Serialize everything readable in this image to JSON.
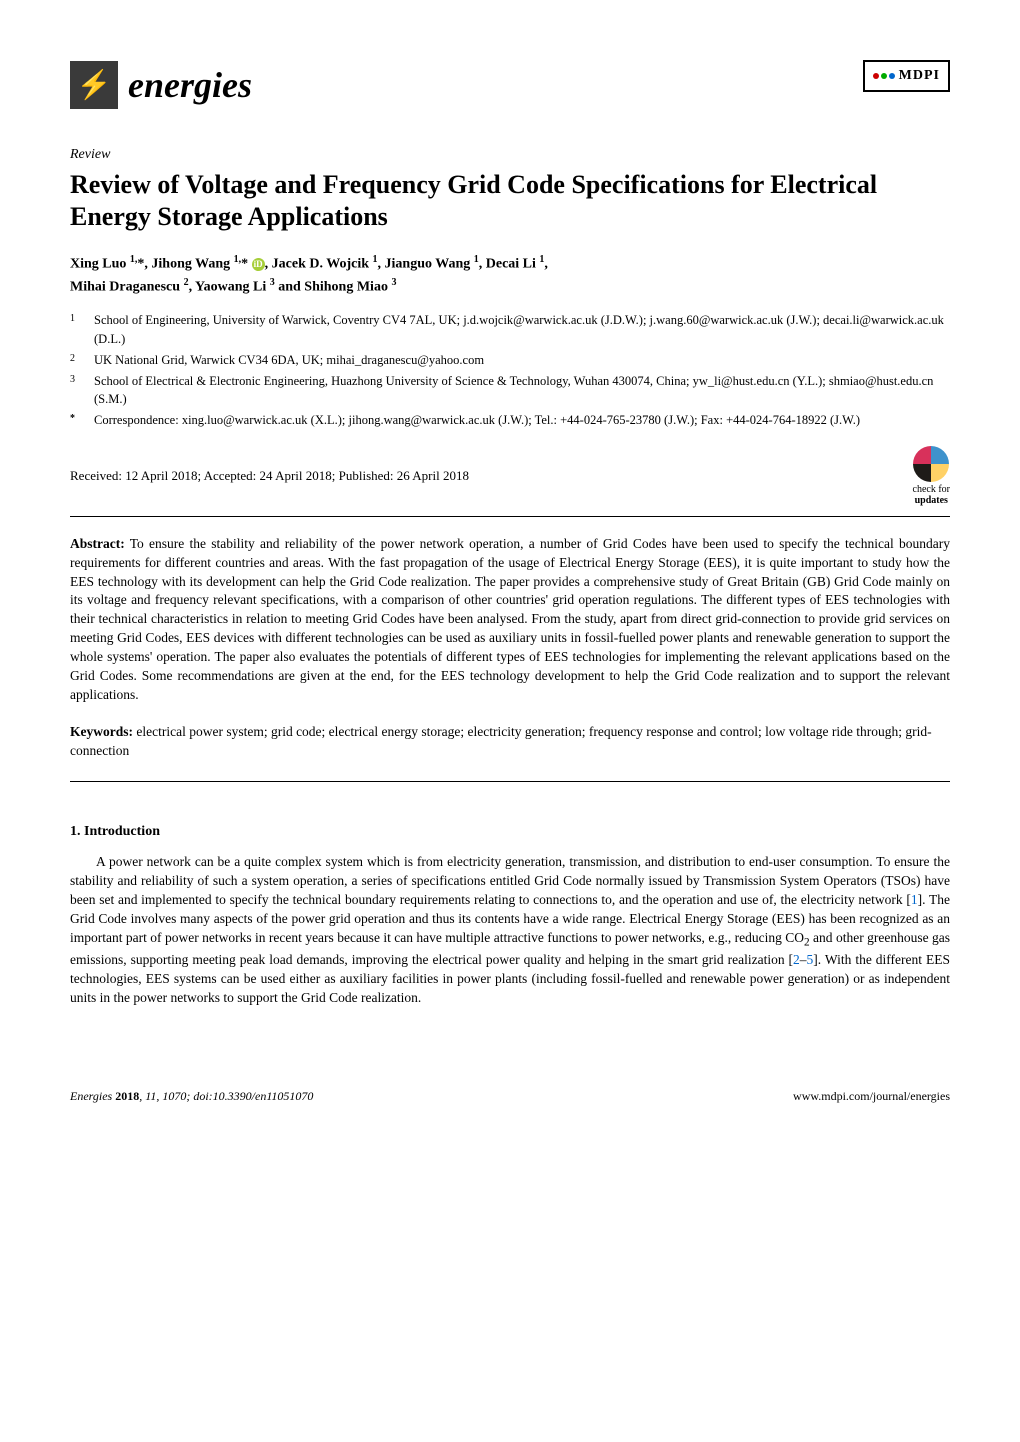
{
  "header": {
    "journal_name": "energies",
    "publisher_logo_text": "MDPI"
  },
  "article": {
    "type_label": "Review",
    "title": "Review of Voltage and Frequency Grid Code Specifications for Electrical Energy Storage Applications",
    "authors_line1": "Xing Luo ",
    "authors_sup1": "1,",
    "authors_part2": "*, Jihong Wang ",
    "authors_sup2": "1,",
    "authors_part3": "* ",
    "authors_part4": ", Jacek D. Wojcik ",
    "authors_sup4": "1",
    "authors_part5": ", Jianguo Wang ",
    "authors_sup5": "1",
    "authors_part6": ", Decai Li ",
    "authors_sup6": "1",
    "authors_part7": ",",
    "authors_line2_start": "Mihai Draganescu ",
    "authors_sup7": "2",
    "authors_part8": ", Yaowang Li ",
    "authors_sup8": "3",
    "authors_part9": " and Shihong Miao ",
    "authors_sup9": "3"
  },
  "affiliations": {
    "a1_num": "1",
    "a1_text": "School of Engineering, University of Warwick, Coventry CV4 7AL, UK; j.d.wojcik@warwick.ac.uk (J.D.W.); j.wang.60@warwick.ac.uk (J.W.); decai.li@warwick.ac.uk (D.L.)",
    "a2_num": "2",
    "a2_text": "UK National Grid, Warwick CV34 6DA, UK; mihai_draganescu@yahoo.com",
    "a3_num": "3",
    "a3_text": "School of Electrical & Electronic Engineering, Huazhong University of Science & Technology, Wuhan 430074, China; yw_li@hust.edu.cn (Y.L.); shmiao@hust.edu.cn (S.M.)",
    "corr_num": "*",
    "corr_text": "Correspondence: xing.luo@warwick.ac.uk (X.L.); jihong.wang@warwick.ac.uk (J.W.); Tel.: +44-024-765-23780 (J.W.); Fax: +44-024-764-18922 (J.W.)"
  },
  "dates": {
    "text": "Received: 12 April 2018; Accepted: 24 April 2018; Published: 26 April 2018"
  },
  "check_updates": {
    "line1": "check for",
    "line2": "updates",
    "colors": {
      "tl": "#d8315b",
      "tr": "#3e92cc",
      "bl": "#1e1b18",
      "br": "#ffd166"
    }
  },
  "abstract": {
    "label": "Abstract:",
    "text": " To ensure the stability and reliability of the power network operation, a number of Grid Codes have been used to specify the technical boundary requirements for different countries and areas. With the fast propagation of the usage of Electrical Energy Storage (EES), it is quite important to study how the EES technology with its development can help the Grid Code realization. The paper provides a comprehensive study of Great Britain (GB) Grid Code mainly on its voltage and frequency relevant specifications, with a comparison of other countries' grid operation regulations. The different types of EES technologies with their technical characteristics in relation to meeting Grid Codes have been analysed. From the study, apart from direct grid-connection to provide grid services on meeting Grid Codes, EES devices with different technologies can be used as auxiliary units in fossil-fuelled power plants and renewable generation to support the whole systems' operation. The paper also evaluates the potentials of different types of EES technologies for implementing the relevant applications based on the Grid Codes. Some recommendations are given at the end, for the EES technology development to help the Grid Code realization and to support the relevant applications."
  },
  "keywords": {
    "label": "Keywords:",
    "text": " electrical power system; grid code; electrical energy storage; electricity generation; frequency response and control; low voltage ride through; grid-connection"
  },
  "section1": {
    "heading": "1. Introduction",
    "p1_part1": "A power network can be a quite complex system which is from electricity generation, transmission, and distribution to end-user consumption. To ensure the stability and reliability of such a system operation, a series of specifications entitled Grid Code normally issued by Transmission System Operators (TSOs) have been set and implemented to specify the technical boundary requirements relating to connections to, and the operation and use of, the electricity network [",
    "ref1": "1",
    "p1_part2": "]. The Grid Code involves many aspects of the power grid operation and thus its contents have a wide range. Electrical Energy Storage (EES) has been recognized as an important part of power networks in recent years because it can have multiple attractive functions to power networks, e.g., reducing CO",
    "sub2": "2",
    "p1_part3": " and other greenhouse gas emissions, supporting meeting peak load demands, improving the electrical power quality and helping in the smart grid realization [",
    "ref2": "2",
    "dash": "–",
    "ref5": "5",
    "p1_part4": "]. With the different EES technologies, EES systems can be used either as auxiliary facilities in power plants (including fossil-fuelled and renewable power generation) or as independent units in the power networks to support the Grid Code realization."
  },
  "footer": {
    "left_italic": "Energies ",
    "left_bold": "2018",
    "left_rest": ", 11, 1070; doi:10.3390/en11051070",
    "right": "www.mdpi.com/journal/energies"
  },
  "colors": {
    "logo_bg": "#3a3a3a",
    "logo_bolt": "#f5d547",
    "link": "#0066cc",
    "orcid": "#a6ce39"
  }
}
